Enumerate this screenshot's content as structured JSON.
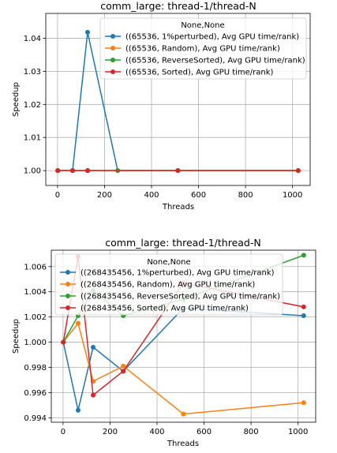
{
  "colors": {
    "blue": "#1f77b4",
    "orange": "#ff7f0e",
    "green": "#2ca02c",
    "red": "#d62728",
    "grid": "#b0b0b0"
  },
  "chart_data": [
    {
      "type": "line",
      "title": "comm_large: thread-1/thread-N",
      "xlabel": "Threads",
      "ylabel": "Speedup",
      "xlim": [
        -50,
        1075
      ],
      "ylim": [
        0.9955,
        1.0475
      ],
      "xticks": [
        0,
        200,
        400,
        600,
        800,
        1000
      ],
      "xtick_labels": [
        "0",
        "200",
        "400",
        "600",
        "800",
        "1000"
      ],
      "yticks": [
        1.0,
        1.01,
        1.02,
        1.03,
        1.04
      ],
      "ytick_labels": [
        "1.00",
        "1.01",
        "1.02",
        "1.03",
        "1.04"
      ],
      "grid": true,
      "legend_title": "None,None",
      "legend_position": "upper right",
      "series": [
        {
          "name": "((65536, 1%perturbed), Avg GPU time/rank)",
          "color": "blue",
          "x": [
            1,
            64,
            128,
            256,
            512,
            1024
          ],
          "y": [
            1.0,
            1.0,
            1.0418,
            1.0,
            1.0,
            1.0
          ]
        },
        {
          "name": "((65536, Random), Avg GPU time/rank)",
          "color": "orange",
          "x": [
            1,
            64,
            128,
            256,
            512,
            1024
          ],
          "y": [
            1.0,
            1.0,
            1.0,
            1.0,
            1.0,
            1.0
          ]
        },
        {
          "name": "((65536, ReverseSorted), Avg GPU time/rank)",
          "color": "green",
          "x": [
            1,
            64,
            128,
            256,
            512,
            1024
          ],
          "y": [
            1.0,
            1.0,
            1.0,
            1.0,
            1.0,
            1.0
          ]
        },
        {
          "name": "((65536, Sorted), Avg GPU time/rank)",
          "color": "red",
          "x": [
            1,
            64,
            128,
            512,
            1024
          ],
          "y": [
            1.0,
            1.0,
            1.0,
            1.0,
            1.0
          ]
        }
      ]
    },
    {
      "type": "line",
      "title": "comm_large: thread-1/thread-N",
      "xlabel": "Threads",
      "ylabel": "Speedup",
      "xlim": [
        -50,
        1075
      ],
      "ylim": [
        0.99365,
        1.0073
      ],
      "xticks": [
        0,
        200,
        400,
        600,
        800,
        1000
      ],
      "xtick_labels": [
        "0",
        "200",
        "400",
        "600",
        "800",
        "1000"
      ],
      "yticks": [
        0.994,
        0.996,
        0.998,
        1.0,
        1.002,
        1.004,
        1.006
      ],
      "ytick_labels": [
        "0.994",
        "0.996",
        "0.998",
        "1.000",
        "1.002",
        "1.004",
        "1.006"
      ],
      "grid": true,
      "legend_title": "None,None",
      "legend_position": "upper left",
      "series": [
        {
          "name": "((268435456, 1%perturbed), Avg GPU time/rank)",
          "color": "blue",
          "x": [
            1,
            64,
            128,
            256,
            512,
            1024
          ],
          "y": [
            1.0,
            0.9946,
            0.9996,
            0.9977,
            1.0027,
            1.0021
          ]
        },
        {
          "name": "((268435456, Random), Avg GPU time/rank)",
          "color": "orange",
          "x": [
            1,
            64,
            128,
            256,
            512,
            1024
          ],
          "y": [
            1.0,
            1.0015,
            0.9969,
            0.9981,
            0.9943,
            0.9952
          ]
        },
        {
          "name": "((268435456, ReverseSorted), Avg GPU time/rank)",
          "color": "green",
          "x": [
            1,
            64,
            128,
            256,
            512,
            1024
          ],
          "y": [
            1.0,
            1.0021,
            1.0041,
            1.0021,
            1.0034,
            1.0069
          ]
        },
        {
          "name": "((268435456, Sorted), Avg GPU time/rank)",
          "color": "red",
          "x": [
            1,
            64,
            128,
            256,
            512,
            1024
          ],
          "y": [
            1.0,
            1.0068,
            0.9958,
            0.9977,
            1.0047,
            1.0028
          ]
        }
      ]
    }
  ]
}
